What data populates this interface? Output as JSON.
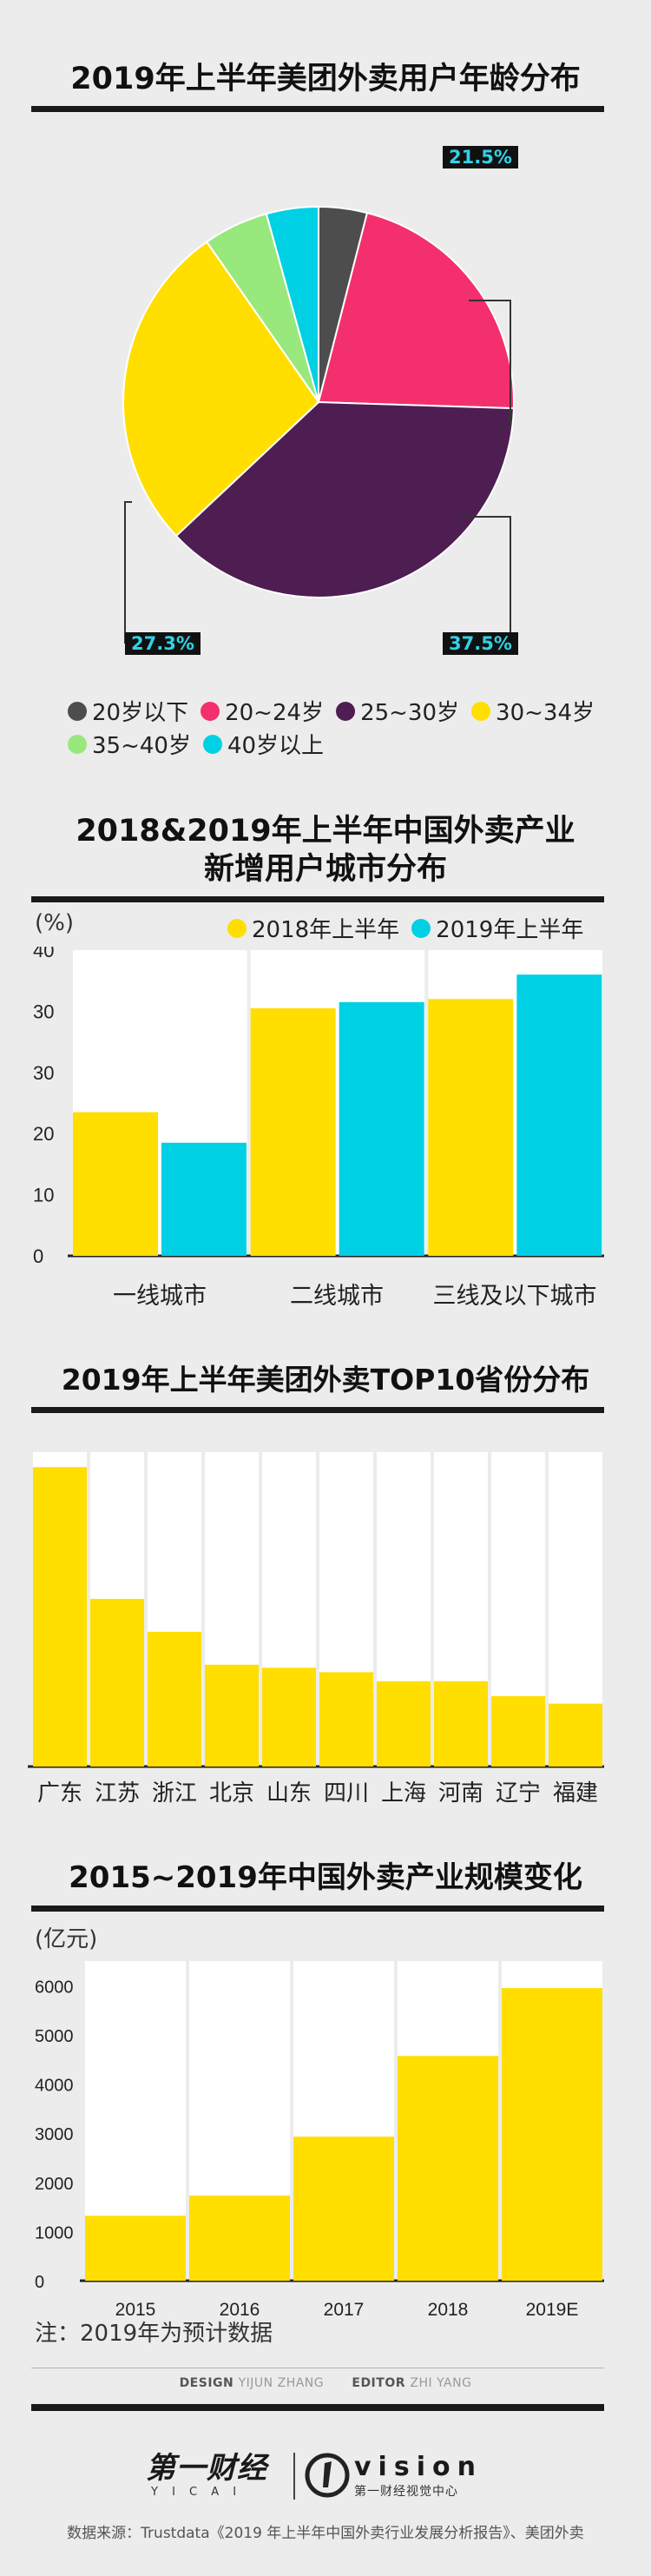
{
  "colors": {
    "yellow": "#ffde00",
    "cyan": "#00d0e4",
    "pink": "#f3306d",
    "purple": "#4e1d52",
    "gray": "#4d4d4d",
    "green": "#98e87e",
    "dark": "#1a1a1a"
  },
  "chart_data": [
    {
      "type": "pie",
      "title": "2019年上半年美团外卖用户年龄分布",
      "categories": [
        "20岁以下",
        "20~24岁",
        "25~30岁",
        "30~34岁",
        "35~40岁",
        "40岁以上"
      ],
      "values": [
        4.0,
        21.5,
        37.5,
        27.3,
        5.4,
        4.3
      ],
      "labels_shown": {
        "pink": "21.5%",
        "yellow": "27.3%",
        "purple": "37.5%"
      },
      "legend": "bottom"
    },
    {
      "type": "bar",
      "title_line1": "2018&2019年上半年中国外卖产业",
      "title_line2": "新增用户城市分布",
      "unit": "(%)",
      "categories": [
        "一线城市",
        "二线城市",
        "三线及以下城市"
      ],
      "series": [
        {
          "name": "2018年上半年",
          "values": [
            23.5,
            40.5,
            42
          ]
        },
        {
          "name": "2019年上半年",
          "values": [
            18.5,
            41.5,
            46
          ]
        }
      ],
      "ytick_labels": [
        "0",
        "10",
        "20",
        "30",
        "30",
        "40"
      ],
      "ylim": [
        0,
        50
      ],
      "legend": "top-right"
    },
    {
      "type": "bar",
      "title": "2019年上半年美团外卖TOP10省份分布",
      "categories": [
        "广东",
        "江苏",
        "浙江",
        "北京",
        "山东",
        "四川",
        "上海",
        "河南",
        "辽宁",
        "福建"
      ],
      "values": [
        100,
        56,
        45,
        34,
        33,
        31.5,
        28.5,
        28.5,
        23.5,
        21
      ],
      "ylim": [
        0,
        105
      ]
    },
    {
      "type": "bar",
      "title": "2015~2019年中国外卖产业规模变化",
      "unit": "(亿元)",
      "categories": [
        "2015",
        "2016",
        "2017",
        "2018",
        "2019E"
      ],
      "values": [
        1320,
        1730,
        2930,
        4570,
        5950
      ],
      "ytick_labels": [
        "0",
        "1000",
        "2000",
        "3000",
        "4000",
        "5000",
        "6000"
      ],
      "ylim": [
        0,
        6500
      ],
      "note": "注：2019年为预计数据"
    }
  ],
  "credits": {
    "design_label": "DESIGN",
    "design_name": "YIJUN ZHANG",
    "editor_label": "EDITOR",
    "editor_name": "ZHI YANG"
  },
  "logo": {
    "brand": "第一财经",
    "brand_sub": "Y I C A I",
    "vision": "vision",
    "vision_sub": "第一财经视觉中心"
  },
  "source": "数据来源：Trustdata《2019 年上半年中国外卖行业发展分析报告》、美团外卖"
}
